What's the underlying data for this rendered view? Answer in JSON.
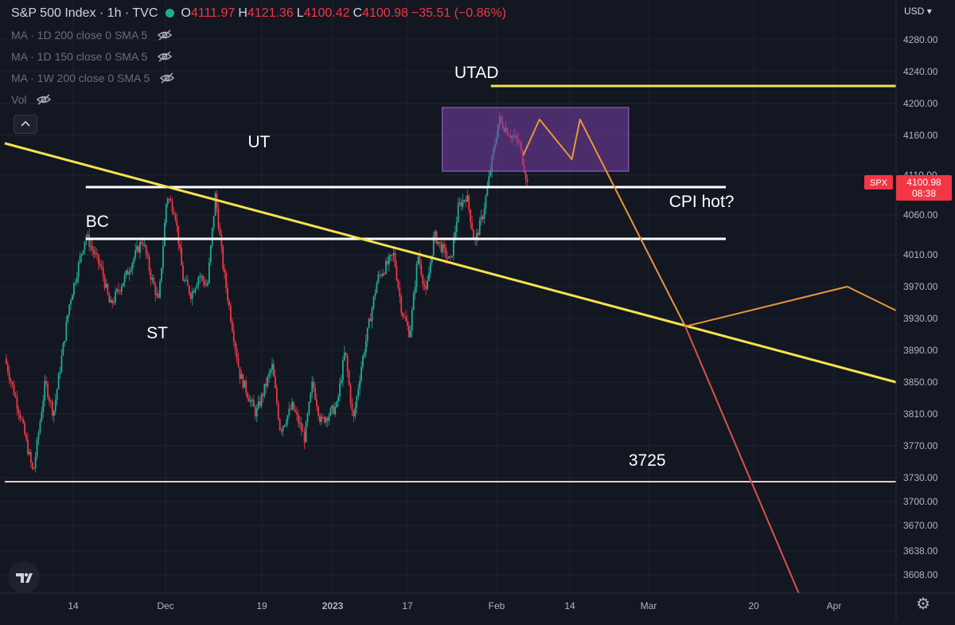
{
  "header": {
    "symbol": "S&P 500 Index · 1h · TVC",
    "ohlc": [
      {
        "key": "O",
        "value": "4111.97"
      },
      {
        "key": "H",
        "value": "4121.36"
      },
      {
        "key": "L",
        "value": "4100.42"
      },
      {
        "key": "C",
        "value": "4100.98"
      }
    ],
    "change": "−35.51 (−0.86%)"
  },
  "indicators": [
    "MA · 1D 200 close 0 SMA 5",
    "MA · 1D 150 close 0 SMA 5",
    "MA · 1W 200 close 0 SMA 5",
    "Vol"
  ],
  "price_axis": {
    "currency": "USD"
  },
  "price_tag": {
    "symbol": "SPX",
    "price": "4100.98",
    "countdown": "08:38"
  },
  "colors": {
    "background": "#131722",
    "up": "#22ab94",
    "down": "#f23645",
    "trendline": "#f5e24e",
    "projection_orange": "#e8953a",
    "projection_red": "#e04e4e",
    "box": "#7b3fa8",
    "support_line": "#f4c9c9"
  },
  "chart_data": {
    "type": "candlestick",
    "title": "S&P 500 Index · 1h · TVC",
    "xlabel": "",
    "ylabel": "",
    "x_ticks": [
      "14",
      "Dec",
      "19",
      "2023",
      "17",
      "Feb",
      "14",
      "Mar",
      "20",
      "Apr"
    ],
    "y_ticks": [
      4280,
      4240,
      4200,
      4160,
      4110,
      4060,
      4010,
      3970,
      3930,
      3890,
      3850,
      3810,
      3770,
      3730,
      3700,
      3670,
      3638,
      3608
    ],
    "ylim": [
      3585,
      4330
    ],
    "grid": true,
    "last_price": 4100.98,
    "price_path": [
      [
        0,
        3880
      ],
      [
        2,
        3805
      ],
      [
        3.5,
        3735
      ],
      [
        5,
        3850
      ],
      [
        6,
        3810
      ],
      [
        8,
        3950
      ],
      [
        10,
        4035
      ],
      [
        12,
        3990
      ],
      [
        13,
        3945
      ],
      [
        15,
        3985
      ],
      [
        17,
        4030
      ],
      [
        18,
        3985
      ],
      [
        19,
        3950
      ],
      [
        20,
        4085
      ],
      [
        21,
        4065
      ],
      [
        22,
        3980
      ],
      [
        23,
        3960
      ],
      [
        24,
        3985
      ],
      [
        25,
        3970
      ],
      [
        26,
        4085
      ],
      [
        27,
        3990
      ],
      [
        29,
        3860
      ],
      [
        31,
        3810
      ],
      [
        33,
        3870
      ],
      [
        34,
        3790
      ],
      [
        35.5,
        3820
      ],
      [
        37,
        3780
      ],
      [
        38,
        3850
      ],
      [
        39,
        3800
      ],
      [
        41,
        3820
      ],
      [
        42,
        3890
      ],
      [
        43,
        3800
      ],
      [
        44,
        3870
      ],
      [
        46,
        3980
      ],
      [
        48,
        4010
      ],
      [
        49,
        3940
      ],
      [
        50,
        3910
      ],
      [
        51,
        4010
      ],
      [
        52,
        3960
      ],
      [
        53,
        4035
      ],
      [
        55,
        4000
      ],
      [
        56,
        4070
      ],
      [
        57,
        4085
      ],
      [
        58,
        4025
      ],
      [
        59,
        4060
      ],
      [
        60,
        4120
      ],
      [
        61,
        4180
      ],
      [
        62.5,
        4160
      ],
      [
        63.5,
        4150
      ],
      [
        64.5,
        4100.98
      ]
    ],
    "hlines": [
      {
        "label": "BC",
        "value": 4030
      },
      {
        "label": "UT",
        "value": 4095
      },
      {
        "label": "UTAD",
        "value": 4222
      },
      {
        "label": "3725",
        "value": 3725
      }
    ],
    "trendline": [
      [
        0,
        4150
      ],
      [
        110,
        3850
      ]
    ],
    "box": {
      "x": [
        54,
        77
      ],
      "y": [
        4115,
        4195
      ]
    },
    "projections": [
      {
        "color": "orange",
        "points": [
          [
            64,
            4135
          ],
          [
            66,
            4180
          ],
          [
            70,
            4130
          ],
          [
            71,
            4180
          ],
          [
            84,
            3920
          ],
          [
            104,
            3970
          ],
          [
            110,
            3940
          ]
        ]
      },
      {
        "color": "red",
        "points": [
          [
            84,
            3920
          ],
          [
            98,
            3585
          ]
        ]
      }
    ],
    "annotations": [
      {
        "text": "UTAD",
        "x": 55.5,
        "y": 4232
      },
      {
        "text": "UT",
        "x": 30,
        "y": 4145
      },
      {
        "text": "BC",
        "x": 10,
        "y": 4045
      },
      {
        "text": "ST",
        "x": 17.5,
        "y": 3905
      },
      {
        "text": "CPI hot?",
        "x": 82,
        "y": 4070
      },
      {
        "text": "3725",
        "x": 77,
        "y": 3745
      }
    ]
  }
}
